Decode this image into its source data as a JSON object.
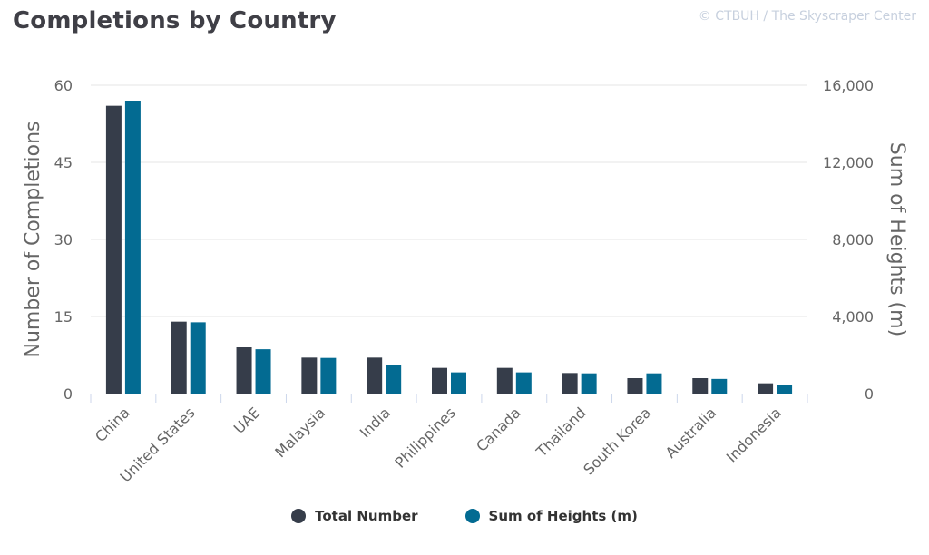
{
  "title": "Completions by Country",
  "credit": "© CTBUH / The Skyscraper Center",
  "colors": {
    "total": "#363d4a",
    "heights": "#036b92",
    "axis_text": "#666666",
    "grid": "#e6e6e6",
    "axis_line": "#ccd6eb"
  },
  "legend": {
    "total_label": "Total Number",
    "heights_label": "Sum of Heights (m)"
  },
  "chart_data": {
    "type": "bar",
    "categories": [
      "China",
      "United States",
      "UAE",
      "Malaysia",
      "India",
      "Philippines",
      "Canada",
      "Thailand",
      "South Korea",
      "Australia",
      "Indonesia"
    ],
    "series": [
      {
        "name": "Total Number",
        "axis": "left",
        "values": [
          56,
          14,
          9,
          7,
          7,
          5,
          5,
          4,
          3,
          3,
          2
        ]
      },
      {
        "name": "Sum of Heights (m)",
        "axis": "right",
        "values": [
          15200,
          3700,
          2300,
          1850,
          1500,
          1100,
          1100,
          1050,
          1050,
          760,
          430
        ]
      }
    ],
    "ylabel_left": "Number of Completions",
    "ylabel_right": "Sum of Heights (m)",
    "ylim_left": [
      0,
      60
    ],
    "ylim_right": [
      0,
      16000
    ],
    "yticks_left": [
      "0",
      "15",
      "30",
      "45",
      "60"
    ],
    "yticks_right": [
      "0",
      "4,000",
      "8,000",
      "12,000",
      "16,000"
    ],
    "grid": true,
    "legend_position": "bottom-center"
  }
}
